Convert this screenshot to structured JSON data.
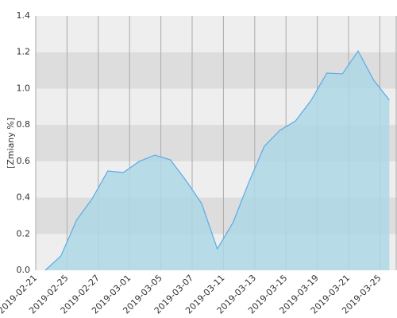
{
  "chart_data": {
    "type": "area",
    "y_label": "[Zmiany %]",
    "categories": [
      "2019-02-21",
      null,
      "2019-02-25",
      null,
      "2019-02-27",
      null,
      "2019-03-01",
      null,
      "2019-03-05",
      null,
      "2019-03-07",
      null,
      "2019-03-11",
      null,
      "2019-03-13",
      null,
      "2019-03-15",
      null,
      "2019-03-19",
      null,
      "2019-03-21",
      null,
      "2019-03-25"
    ],
    "values": [
      0,
      0.079,
      0.276,
      0.394,
      0.547,
      0.538,
      0.599,
      0.634,
      0.608,
      0.494,
      0.367,
      0.118,
      0.262,
      0.481,
      0.682,
      0.77,
      0.822,
      0.936,
      1.085,
      1.081,
      1.207,
      1.046,
      0.936
    ],
    "color": "#5aaae8",
    "fill": "#add8e6",
    "ylim": [
      0,
      1.4
    ],
    "yticks": [
      {
        "value": 0,
        "label": "0.0"
      },
      0.2,
      0.4,
      0.6,
      0.8,
      {
        "value": 1,
        "label": "1.0"
      },
      1.2,
      1.4
    ],
    "grid": true
  }
}
